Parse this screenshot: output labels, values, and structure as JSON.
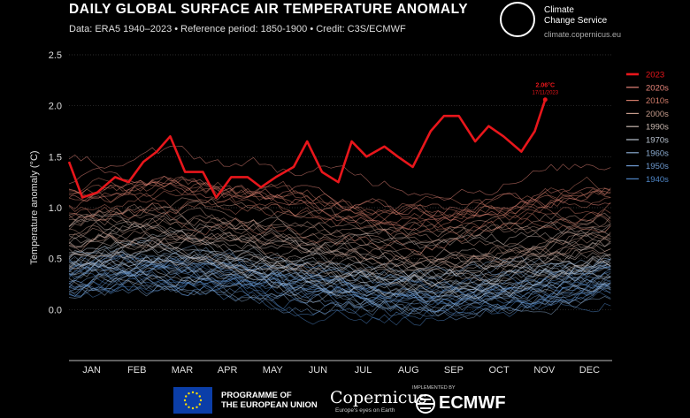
{
  "title": "DAILY GLOBAL SURFACE AIR TEMPERATURE ANOMALY",
  "subtitle": "Data: ERA5 1940–2023 • Reference period: 1850-1900 • Credit: C3S/ECMWF",
  "logos": {
    "c3s_name": "Climate\nChange Service",
    "c3s_url": "climate.copernicus.eu",
    "eu_text": "PROGRAMME OF\nTHE EUROPEAN UNION",
    "copernicus": "Copernicus",
    "copernicus_sub": "Europe's eyes on Earth",
    "implemented_by": "IMPLEMENTED BY",
    "ecmwf": "ECMWF"
  },
  "colors": {
    "highlight": "#e8161b",
    "background": "#000000",
    "decade_2020s": "#e8857a",
    "decade_2010s": "#cf7a68",
    "decade_2000s": "#c49a8a",
    "decade_1990s": "#c9b8b0",
    "decade_1970s": "#b9c3cf",
    "decade_1960s": "#8aabd0",
    "decade_1950s": "#6d99cf",
    "decade_1940s": "#4f86c6"
  },
  "chart_data": {
    "type": "line",
    "ylabel": "Temperature anomaly (°C)",
    "xlabel": "",
    "ylim": [
      -0.5,
      2.5
    ],
    "yticks": [
      "2.5",
      "2.0",
      "1.5",
      "1.0",
      "0.5",
      "0.0"
    ],
    "ytick_values": [
      2.5,
      2.0,
      1.5,
      1.0,
      0.5,
      0.0
    ],
    "months": [
      "JAN",
      "FEB",
      "MAR",
      "APR",
      "MAY",
      "JUN",
      "JUL",
      "AUG",
      "SEP",
      "OCT",
      "NOV",
      "DEC"
    ],
    "grid": true,
    "legend": {
      "placement": "right",
      "entries": [
        "2023",
        "2020s",
        "2010s",
        "2000s",
        "1990s",
        "1970s",
        "1960s",
        "1950s",
        "1940s"
      ]
    },
    "decade_centers": {
      "1940s": 0.25,
      "1950s": 0.22,
      "1960s": 0.28,
      "1970s": 0.38,
      "1990s": 0.58,
      "2000s": 0.75,
      "2010s": 0.95,
      "2020s": 1.2
    },
    "series": [
      {
        "name": "2023",
        "x": [
          "2023-01-01",
          "2023-01-10",
          "2023-01-20",
          "2023-02-01",
          "2023-02-10",
          "2023-02-20",
          "2023-03-01",
          "2023-03-10",
          "2023-03-20",
          "2023-04-01",
          "2023-04-10",
          "2023-04-20",
          "2023-05-01",
          "2023-05-10",
          "2023-05-20",
          "2023-06-01",
          "2023-06-10",
          "2023-06-20",
          "2023-07-01",
          "2023-07-10",
          "2023-07-20",
          "2023-08-01",
          "2023-08-10",
          "2023-08-20",
          "2023-09-01",
          "2023-09-10",
          "2023-09-20",
          "2023-10-01",
          "2023-10-10",
          "2023-10-20",
          "2023-11-01",
          "2023-11-10",
          "2023-11-17"
        ],
        "values": [
          1.45,
          1.1,
          1.15,
          1.3,
          1.25,
          1.45,
          1.55,
          1.7,
          1.35,
          1.35,
          1.1,
          1.3,
          1.3,
          1.2,
          1.3,
          1.4,
          1.65,
          1.35,
          1.25,
          1.65,
          1.5,
          1.6,
          1.5,
          1.4,
          1.75,
          1.9,
          1.9,
          1.65,
          1.8,
          1.7,
          1.55,
          1.75,
          2.06
        ]
      }
    ],
    "annotation": {
      "text": "2.06°C",
      "date": "17/11/2023"
    }
  }
}
